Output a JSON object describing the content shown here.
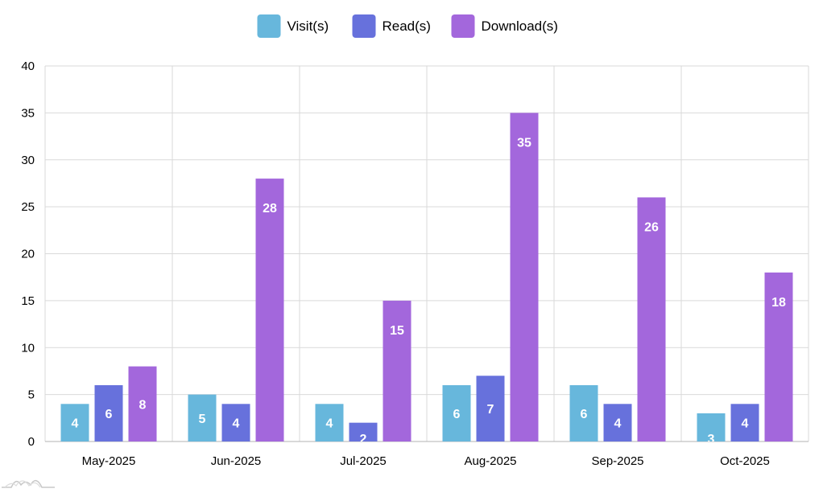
{
  "chart_data": {
    "type": "bar",
    "categories": [
      "May-2025",
      "Jun-2025",
      "Jul-2025",
      "Aug-2025",
      "Sep-2025",
      "Oct-2025"
    ],
    "series": [
      {
        "name": "Visit(s)",
        "color": "#67b7dc",
        "values": [
          4,
          5,
          4,
          6,
          6,
          3
        ]
      },
      {
        "name": "Read(s)",
        "color": "#6771dc",
        "values": [
          6,
          4,
          2,
          7,
          4,
          4
        ]
      },
      {
        "name": "Download(s)",
        "color": "#a367dc",
        "values": [
          8,
          28,
          15,
          35,
          26,
          18
        ]
      }
    ],
    "ylim": [
      0,
      40
    ],
    "yticks": [
      0,
      5,
      10,
      15,
      20,
      25,
      30,
      35,
      40
    ],
    "grid": true,
    "legend_position": "top-center",
    "data_labels": true
  },
  "watermark_icon": "amcharts-logo-icon"
}
